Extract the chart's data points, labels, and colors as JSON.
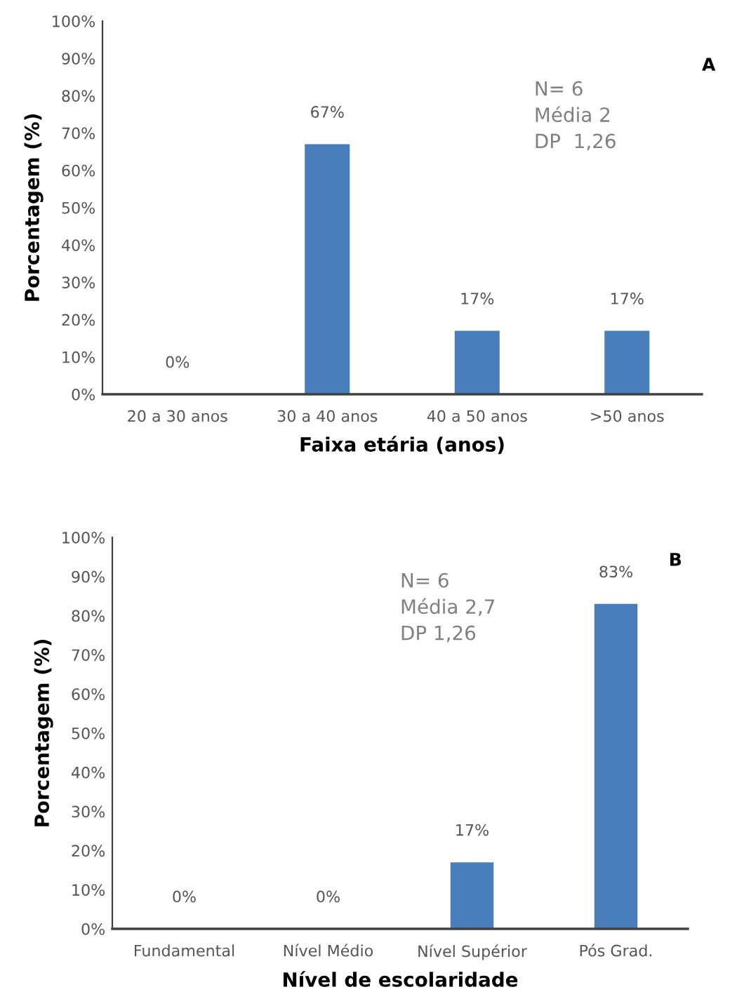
{
  "chart_data": [
    {
      "type": "bar",
      "xlabel": "Faixa etária (anos)",
      "ylabel": "Porcentagem (%)",
      "categories": [
        "20 a 30 anos",
        "30 a 40 anos",
        "40 a 50 anos",
        ">50 anos"
      ],
      "values": [
        0,
        67,
        17,
        17
      ],
      "value_labels": [
        "0%",
        "67%",
        "17%",
        "17%"
      ],
      "color": "#4a7ebb",
      "ylim": [
        0,
        100
      ],
      "yticks": [
        {
          "value": 0,
          "label": "0%"
        },
        {
          "value": 10,
          "label": "10%"
        },
        {
          "value": 20,
          "label": "20%"
        },
        {
          "value": 30,
          "label": "30%"
        },
        {
          "value": 40,
          "label": "40%"
        },
        {
          "value": 50,
          "label": "50%"
        },
        {
          "value": 60,
          "label": "60%"
        },
        {
          "value": 70,
          "label": "70%"
        },
        {
          "value": 80,
          "label": "80%"
        },
        {
          "value": 90,
          "label": "90%"
        },
        {
          "value": 100,
          "label": "100%"
        }
      ],
      "grid": false,
      "annotations": [
        "A",
        "N= 6\nMédia 2\nDP  1,26"
      ]
    },
    {
      "type": "bar",
      "xlabel": "Nível de escolaridade",
      "ylabel": "Porcentagem (%)",
      "categories": [
        "Fundamental",
        "Nível Médio",
        "Nível Supérior",
        "Pós Grad."
      ],
      "values": [
        0,
        0,
        17,
        83
      ],
      "value_labels": [
        "0%",
        "0%",
        "17%",
        "83%"
      ],
      "color": "#4a7ebb",
      "ylim": [
        0,
        100
      ],
      "yticks": [
        {
          "value": 0,
          "label": "0%"
        },
        {
          "value": 10,
          "label": "10%"
        },
        {
          "value": 20,
          "label": "20%"
        },
        {
          "value": 30,
          "label": "30%"
        },
        {
          "value": 40,
          "label": "40%"
        },
        {
          "value": 50,
          "label": "50%"
        },
        {
          "value": 60,
          "label": "60%"
        },
        {
          "value": 70,
          "label": "70%"
        },
        {
          "value": 80,
          "label": "80%"
        },
        {
          "value": 90,
          "label": "90%"
        },
        {
          "value": 100,
          "label": "100%"
        }
      ],
      "grid": false,
      "annotations": [
        "B",
        "N= 6\nMédia 2,7\nDP 1,26"
      ]
    }
  ]
}
